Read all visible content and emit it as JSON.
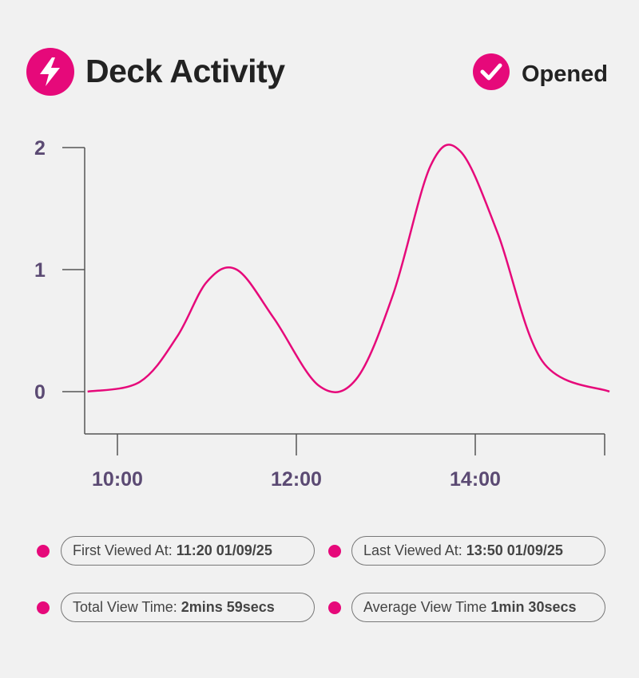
{
  "header": {
    "title": "Deck Activity",
    "status_label": "Opened",
    "accent_color": "#e6097a",
    "title_icon": "lightning-bolt-icon",
    "status_icon": "checkmark-icon"
  },
  "chart_data": {
    "type": "line",
    "title": "",
    "xlabel": "",
    "ylabel": "",
    "x_ticks": [
      "10:00",
      "12:00",
      "14:00"
    ],
    "y_ticks": [
      0,
      1,
      2
    ],
    "ylim": [
      0,
      2
    ],
    "grid": false,
    "line_color": "#e6097a",
    "series": [
      {
        "x": [
          "09:40",
          "10:15",
          "10:40",
          "11:00",
          "11:20",
          "11:45",
          "12:15",
          "12:40",
          "13:05",
          "13:30",
          "13:50",
          "14:15",
          "14:45",
          "15:30"
        ],
        "values": [
          0,
          0.08,
          0.45,
          0.9,
          1.0,
          0.6,
          0.05,
          0.1,
          0.8,
          1.85,
          1.97,
          1.3,
          0.25,
          0
        ]
      }
    ]
  },
  "stats": {
    "first_viewed": {
      "label": "First Viewed At:",
      "value": "11:20 01/09/25"
    },
    "last_viewed": {
      "label": "Last Viewed At:",
      "value": "13:50 01/09/25"
    },
    "total_view_time": {
      "label": "Total View Time:",
      "value": "2mins 59secs"
    },
    "average_view_time": {
      "label": "Average View Time",
      "value": "1min 30secs"
    }
  }
}
